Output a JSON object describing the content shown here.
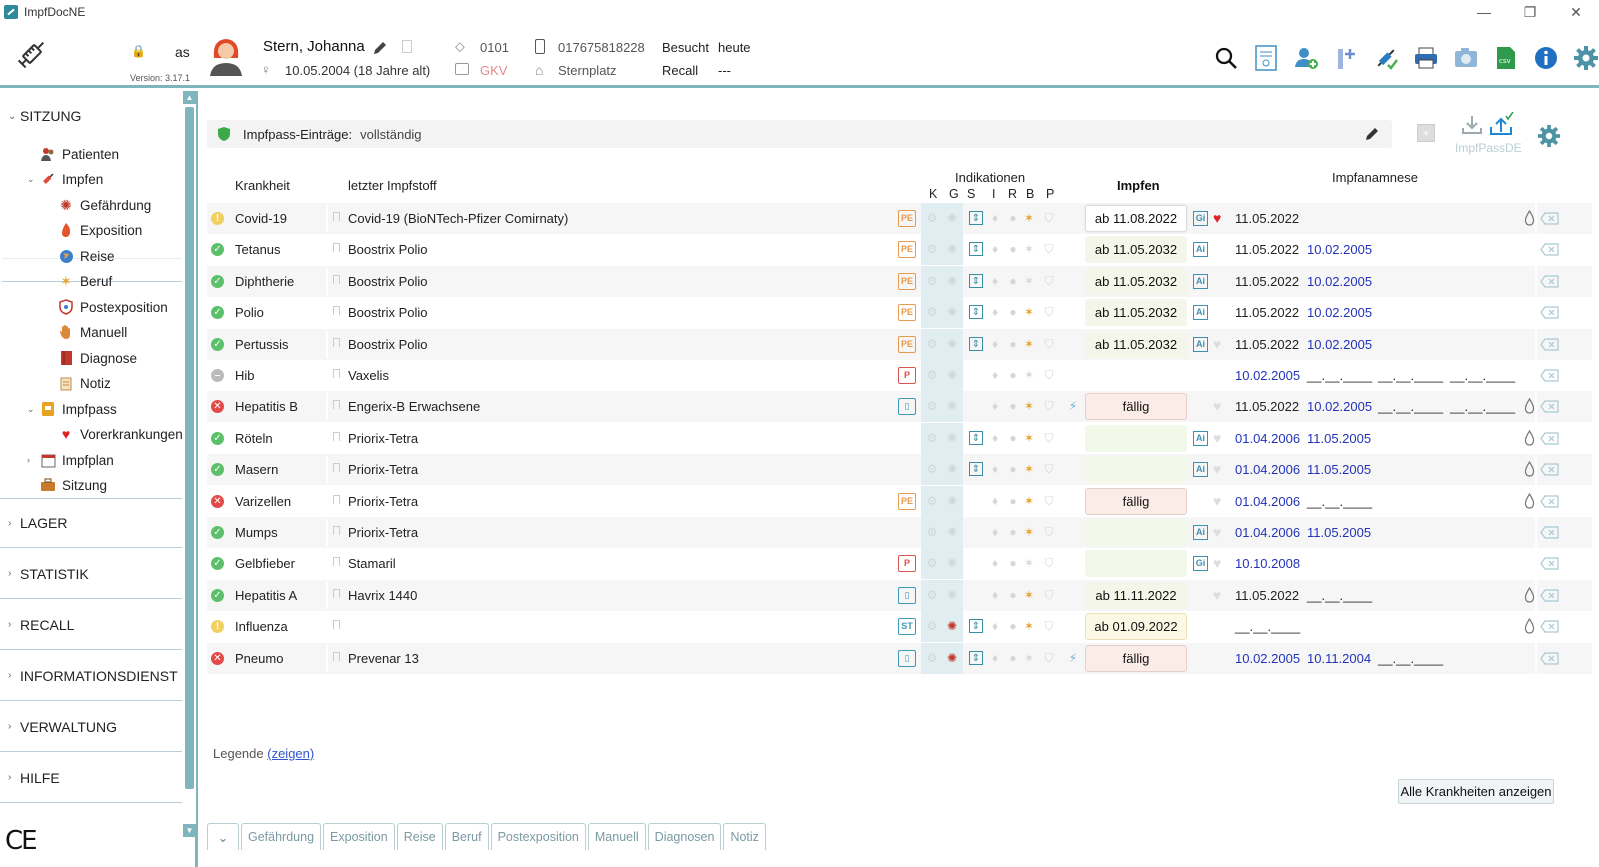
{
  "window": {
    "title": "ImpfDocNE",
    "controls": [
      "—",
      "❐",
      "✕"
    ]
  },
  "header": {
    "user": "as",
    "version": "Version: 3.17.1",
    "patient_name": "Stern, Johanna",
    "dob": "10.05.2004  (18 Jahre alt)",
    "patient_no": "0101",
    "insurance": "GKV",
    "phone": "017675818228",
    "address": "Sternplatz",
    "besucht_label": "Besucht",
    "besucht_value": "heute",
    "recall_label": "Recall",
    "recall_value": "---",
    "toolbar": [
      "search-icon",
      "report-icon",
      "add-patient-icon",
      "add-entry-icon",
      "vaccine-stock-icon",
      "print-icon",
      "camera-icon",
      "csv-export-icon",
      "info-icon",
      "settings-icon"
    ]
  },
  "sidebar": {
    "sections": [
      {
        "label": "SITZUNG",
        "expanded": true
      },
      {
        "label": "LAGER"
      },
      {
        "label": "STATISTIK"
      },
      {
        "label": "RECALL"
      },
      {
        "label": "INFORMATIONSDIENST"
      },
      {
        "label": "VERWALTUNG"
      },
      {
        "label": "HILFE"
      }
    ],
    "items": {
      "patienten": "Patienten",
      "impfen": "Impfen",
      "gefaehrdung": "Gefährdung",
      "exposition": "Exposition",
      "reise": "Reise",
      "beruf": "Beruf",
      "postexposition": "Postexposition",
      "manuell": "Manuell",
      "diagnose": "Diagnose",
      "notiz": "Notiz",
      "impfpass": "Impfpass",
      "vorerkrankungen": "Vorerkrankungen",
      "impfplan": "Impfplan",
      "sitzung": "Sitzung"
    },
    "ce_mark": "CE"
  },
  "main": {
    "info_label": "Impfpass-Einträge:",
    "info_value": "vollständig",
    "impfpassde_label": "ImpfPassDE",
    "columns": {
      "krankheit": "Krankheit",
      "impfstoff": "letzter Impfstoff",
      "indikationen": "Indikationen",
      "ind_letters": [
        "K",
        "G",
        "S",
        "I",
        "R",
        "B",
        "P"
      ],
      "impfen": "Impfen",
      "anamnese": "Impfanamnese"
    },
    "rows": [
      {
        "status": "yellow",
        "disease": "Covid-19",
        "vaccine": "Covid-19 (BioNTech-Pfizer Comirnaty)",
        "badge": "PE",
        "badgeType": "pe",
        "s": true,
        "b": true,
        "impf": "ab 11.08.2022",
        "impfType": "okb",
        "g": "Gi",
        "heart": "red",
        "d1": "11.05.2022",
        "d2": "",
        "d3": "",
        "d4": "",
        "drop": true
      },
      {
        "status": "green",
        "disease": "Tetanus",
        "vaccine": "Boostrix Polio",
        "badge": "PE",
        "badgeType": "pe",
        "s": true,
        "b": false,
        "impf": "ab 11.05.2032",
        "impfType": "ok",
        "g": "Ai",
        "heart": "",
        "d1": "11.05.2022",
        "d2": "10.02.2005",
        "d3": "",
        "d4": "",
        "drop": false
      },
      {
        "status": "green",
        "disease": "Diphtherie",
        "vaccine": "Boostrix Polio",
        "badge": "PE",
        "badgeType": "pe",
        "s": true,
        "b": false,
        "impf": "ab 11.05.2032",
        "impfType": "ok",
        "g": "Ai",
        "heart": "",
        "d1": "11.05.2022",
        "d2": "10.02.2005",
        "d3": "",
        "d4": "",
        "drop": false
      },
      {
        "status": "green",
        "disease": "Polio",
        "vaccine": "Boostrix Polio",
        "badge": "PE",
        "badgeType": "pe",
        "s": true,
        "b": true,
        "impf": "ab 11.05.2032",
        "impfType": "ok",
        "g": "Ai",
        "heart": "",
        "d1": "11.05.2022",
        "d2": "10.02.2005",
        "d3": "",
        "d4": "",
        "drop": false
      },
      {
        "status": "green",
        "disease": "Pertussis",
        "vaccine": "Boostrix Polio",
        "badge": "PE",
        "badgeType": "pe",
        "s": true,
        "b": true,
        "impf": "ab 11.05.2032",
        "impfType": "ok",
        "g": "Ai",
        "heart": "grey",
        "d1": "11.05.2022",
        "d2": "10.02.2005",
        "d3": "",
        "d4": "",
        "drop": false
      },
      {
        "status": "grey",
        "disease": "Hib",
        "vaccine": "Vaxelis",
        "badge": "P",
        "badgeType": "p",
        "s": false,
        "b": false,
        "impf": "",
        "impfType": "",
        "g": "",
        "heart": "",
        "d1": "",
        "d2": "10.02.2005",
        "d3": "__.__.____",
        "d4": "__.__.____",
        "d5": "__.__.____",
        "drop": false
      },
      {
        "status": "red",
        "disease": "Hepatitis B",
        "vaccine": "Engerix-B Erwachsene",
        "badge": "",
        "badgeType": "kit",
        "s": false,
        "b": true,
        "bolt": true,
        "impf": "fällig",
        "impfType": "warn",
        "g": "",
        "heart": "grey",
        "d1": "11.05.2022",
        "d2": "10.02.2005",
        "d3": "__.__.____",
        "d4": "__.__.____",
        "drop": true
      },
      {
        "status": "green",
        "disease": "Röteln",
        "vaccine": "Priorix-Tetra",
        "badge": "",
        "badgeType": "none",
        "s": true,
        "b": true,
        "impf": "",
        "impfType": "empty",
        "g": "Ai",
        "heart": "grey",
        "d1": "01.04.2006",
        "d2": "11.05.2005",
        "d3": "",
        "d4": "",
        "drop": true,
        "blue1": true
      },
      {
        "status": "green",
        "disease": "Masern",
        "vaccine": "Priorix-Tetra",
        "badge": "",
        "badgeType": "none",
        "s": true,
        "b": true,
        "impf": "",
        "impfType": "empty",
        "g": "Ai",
        "heart": "grey",
        "d1": "01.04.2006",
        "d2": "11.05.2005",
        "d3": "",
        "d4": "",
        "drop": true,
        "blue1": true
      },
      {
        "status": "red",
        "disease": "Varizellen",
        "vaccine": "Priorix-Tetra",
        "badge": "PE",
        "badgeType": "pe",
        "s": false,
        "b": true,
        "impf": "fällig",
        "impfType": "warn",
        "g": "",
        "heart": "grey",
        "d1": "01.04.2006",
        "d2": "__.__.____",
        "d3": "",
        "d4": "",
        "drop": true,
        "blue1": true
      },
      {
        "status": "green",
        "disease": "Mumps",
        "vaccine": "Priorix-Tetra",
        "badge": "",
        "badgeType": "none",
        "s": false,
        "b": true,
        "impf": "",
        "impfType": "empty",
        "g": "Ai",
        "heart": "grey",
        "d1": "01.04.2006",
        "d2": "11.05.2005",
        "d3": "",
        "d4": "",
        "drop": false,
        "blue1": true
      },
      {
        "status": "green",
        "disease": "Gelbfieber",
        "vaccine": "Stamaril",
        "badge": "P",
        "badgeType": "p",
        "s": false,
        "b": false,
        "impf": "",
        "impfType": "empty",
        "g": "Gi",
        "heart": "grey",
        "d1": "10.10.2008",
        "d2": "",
        "d3": "",
        "d4": "",
        "drop": false,
        "blue1": true
      },
      {
        "status": "green",
        "disease": "Hepatitis A",
        "vaccine": "Havrix 1440",
        "badge": "",
        "badgeType": "kit",
        "s": false,
        "b": true,
        "impf": "ab 11.11.2022",
        "impfType": "ok",
        "g": "",
        "heart": "grey",
        "d1": "11.05.2022",
        "d2": "__.__.____",
        "d3": "",
        "d4": "",
        "drop": true
      },
      {
        "status": "yellow",
        "disease": "Influenza",
        "vaccine": "",
        "badge": "ST",
        "badgeType": "st",
        "s": true,
        "b": true,
        "redvirus": true,
        "impf": "ab 01.09.2022",
        "impfType": "yel",
        "g": "",
        "heart": "",
        "d1": "__.__.____",
        "d2": "",
        "d3": "",
        "d4": "",
        "drop": true
      },
      {
        "status": "red",
        "disease": "Pneumo",
        "vaccine": "Prevenar 13",
        "badge": "",
        "badgeType": "kit",
        "s": true,
        "b": false,
        "redvirus": true,
        "bolt": true,
        "impf": "fällig",
        "impfType": "warn",
        "g": "",
        "heart": "",
        "d1": "10.02.2005",
        "d2": "10.11.2004",
        "d3": "__.__.____",
        "d4": "",
        "drop": false,
        "blue1": true
      }
    ],
    "legend_label": "Legende",
    "legend_link": "(zeigen)",
    "alle_button": "Alle Krankheiten anzeigen",
    "bottom_tabs": [
      "Gefährdung",
      "Exposition",
      "Reise",
      "Beruf",
      "Postexposition",
      "Manuell",
      "Diagnosen",
      "Notiz"
    ]
  }
}
